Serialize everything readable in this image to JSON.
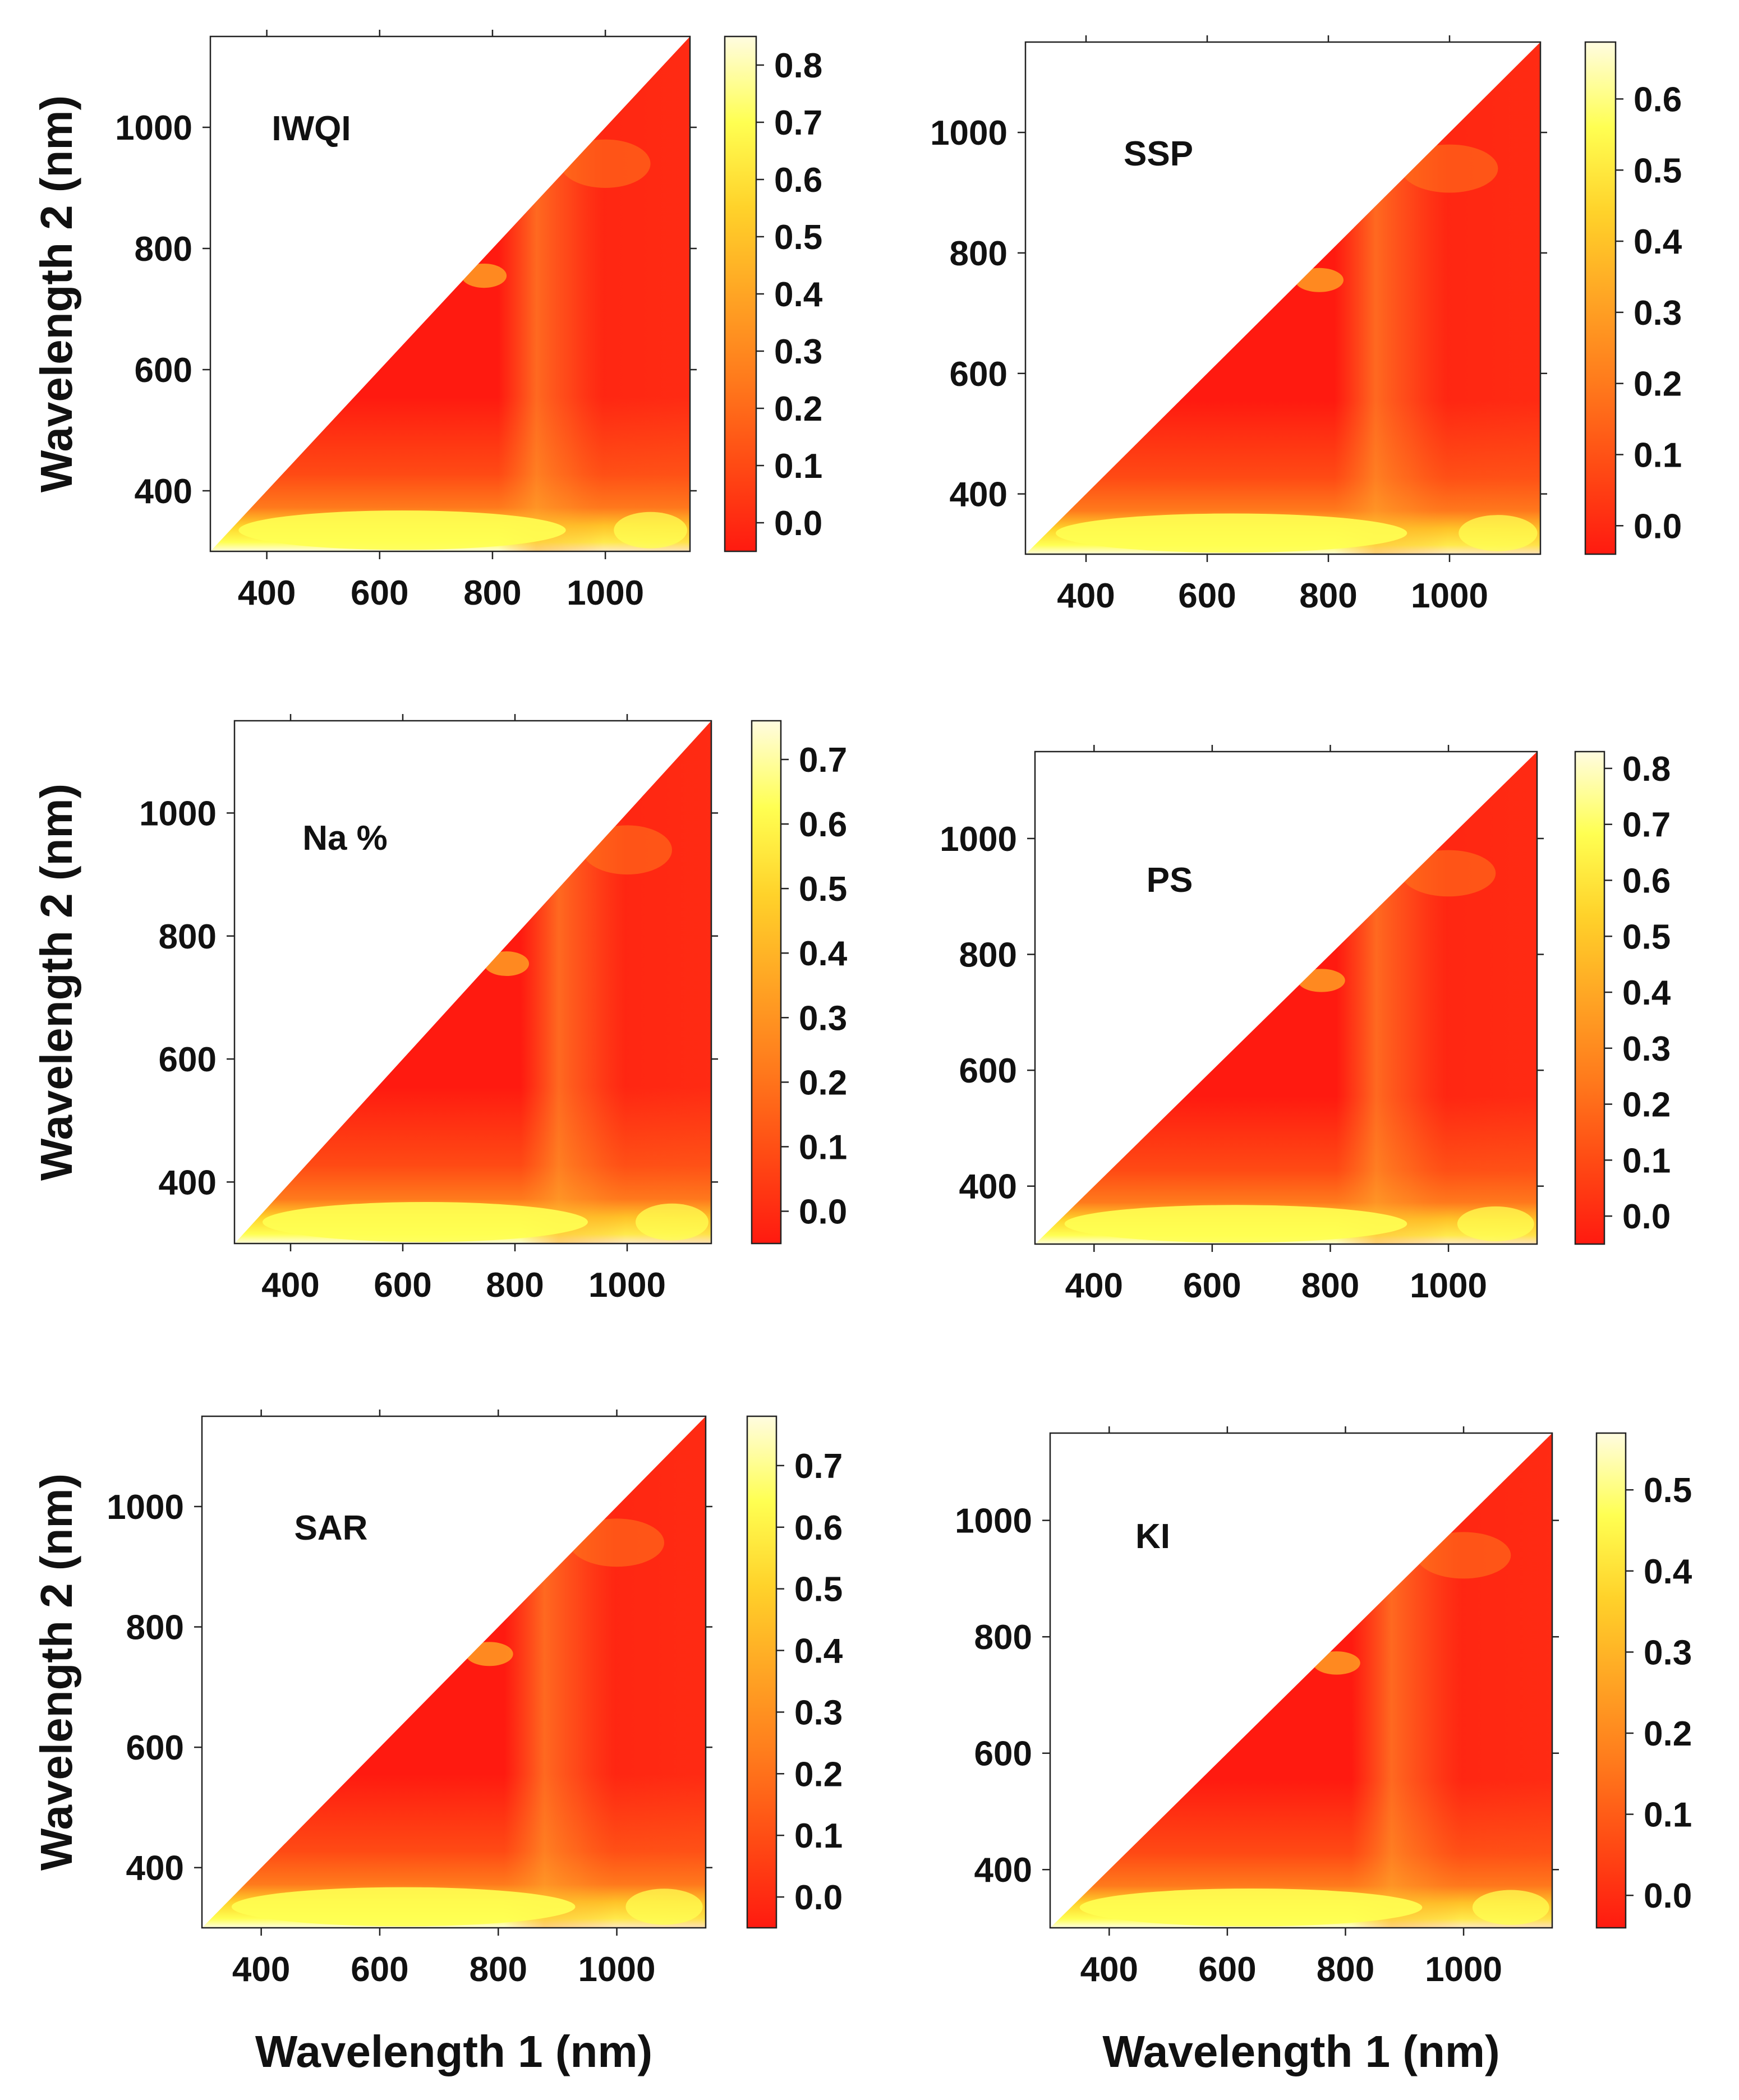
{
  "figure": {
    "ylabel": "Wavelength 2 (nm)",
    "xlabel": "Wavelength 1 (nm)"
  },
  "chart_data": [
    {
      "type": "heatmap",
      "panel_label": "IWQI",
      "xlabel": "",
      "ylabel": "Wavelength 2 (nm)",
      "xlim": [
        300,
        1150
      ],
      "ylim": [
        300,
        1150
      ],
      "x_ticks": [
        400,
        600,
        800,
        1000
      ],
      "y_ticks": [
        400,
        600,
        800,
        1000
      ],
      "colorbar": {
        "range": [
          -0.05,
          0.85
        ],
        "ticks": [
          "0.0",
          "0.1",
          "0.2",
          "0.3",
          "0.4",
          "0.5",
          "0.6",
          "0.7",
          "0.8"
        ]
      },
      "colormap": [
        "#ff1a10",
        "#ff4a14",
        "#ff7a1c",
        "#ffa524",
        "#ffd22a",
        "#ffff52",
        "#fffce0"
      ],
      "upper_left_empty": true
    },
    {
      "type": "heatmap",
      "panel_label": "SSP",
      "xlabel": "",
      "ylabel": "",
      "xlim": [
        300,
        1150
      ],
      "ylim": [
        300,
        1150
      ],
      "x_ticks": [
        400,
        600,
        800,
        1000
      ],
      "y_ticks": [
        400,
        600,
        800,
        1000
      ],
      "colorbar": {
        "range": [
          -0.04,
          0.68
        ],
        "ticks": [
          "0.0",
          "0.1",
          "0.2",
          "0.3",
          "0.4",
          "0.5",
          "0.6"
        ]
      },
      "colormap": [
        "#ff1a10",
        "#ff4a14",
        "#ff7a1c",
        "#ffa524",
        "#ffd22a",
        "#ffff52",
        "#fffce0"
      ],
      "upper_left_empty": true
    },
    {
      "type": "heatmap",
      "panel_label": "Na %",
      "xlabel": "",
      "ylabel": "Wavelength 2 (nm)",
      "xlim": [
        300,
        1150
      ],
      "ylim": [
        300,
        1150
      ],
      "x_ticks": [
        400,
        600,
        800,
        1000
      ],
      "y_ticks": [
        400,
        600,
        800,
        1000
      ],
      "colorbar": {
        "range": [
          -0.05,
          0.76
        ],
        "ticks": [
          "0.0",
          "0.1",
          "0.2",
          "0.3",
          "0.4",
          "0.5",
          "0.6",
          "0.7"
        ]
      },
      "colormap": [
        "#ff1a10",
        "#ff4a14",
        "#ff7a1c",
        "#ffa524",
        "#ffd22a",
        "#ffff52",
        "#fffce0"
      ],
      "upper_left_empty": true
    },
    {
      "type": "heatmap",
      "panel_label": "PS",
      "xlabel": "",
      "ylabel": "",
      "xlim": [
        300,
        1150
      ],
      "ylim": [
        300,
        1150
      ],
      "x_ticks": [
        400,
        600,
        800,
        1000
      ],
      "y_ticks": [
        400,
        600,
        800,
        1000
      ],
      "colorbar": {
        "range": [
          -0.05,
          0.83
        ],
        "ticks": [
          "0.0",
          "0.1",
          "0.2",
          "0.3",
          "0.4",
          "0.5",
          "0.6",
          "0.7",
          "0.8"
        ]
      },
      "colormap": [
        "#ff1a10",
        "#ff4a14",
        "#ff7a1c",
        "#ffa524",
        "#ffd22a",
        "#ffff52",
        "#fffce0"
      ],
      "upper_left_empty": true
    },
    {
      "type": "heatmap",
      "panel_label": "SAR",
      "xlabel": "Wavelength 1 (nm)",
      "ylabel": "Wavelength 2 (nm)",
      "xlim": [
        300,
        1150
      ],
      "ylim": [
        300,
        1150
      ],
      "x_ticks": [
        400,
        600,
        800,
        1000
      ],
      "y_ticks": [
        400,
        600,
        800,
        1000
      ],
      "colorbar": {
        "range": [
          -0.05,
          0.78
        ],
        "ticks": [
          "0.0",
          "0.1",
          "0.2",
          "0.3",
          "0.4",
          "0.5",
          "0.6",
          "0.7"
        ]
      },
      "colormap": [
        "#ff1a10",
        "#ff4a14",
        "#ff7a1c",
        "#ffa524",
        "#ffd22a",
        "#ffff52",
        "#fffce0"
      ],
      "upper_left_empty": true
    },
    {
      "type": "heatmap",
      "panel_label": "KI",
      "xlabel": "Wavelength 1 (nm)",
      "ylabel": "",
      "xlim": [
        300,
        1150
      ],
      "ylim": [
        300,
        1150
      ],
      "x_ticks": [
        400,
        600,
        800,
        1000
      ],
      "y_ticks": [
        400,
        600,
        800,
        1000
      ],
      "colorbar": {
        "range": [
          -0.04,
          0.57
        ],
        "ticks": [
          "0.0",
          "0.1",
          "0.2",
          "0.3",
          "0.4",
          "0.5"
        ]
      },
      "colormap": [
        "#ff1a10",
        "#ff4a14",
        "#ff7a1c",
        "#ffa524",
        "#ffd22a",
        "#ffff52",
        "#fffce0"
      ],
      "upper_left_empty": true
    }
  ]
}
